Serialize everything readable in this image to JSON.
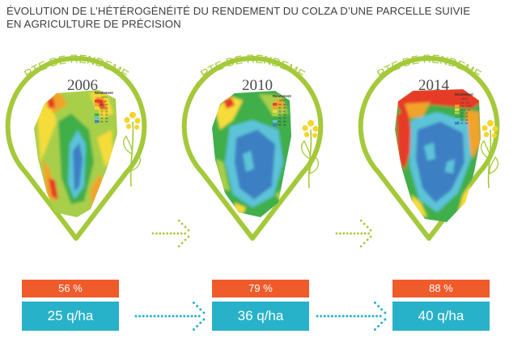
{
  "title": {
    "line1": "ÉVOLUTION DE L’HÉTÉROGÉNÉITÉ DU RENDEMENT DU COLZA D’UNE PARCELLE SUIVIE",
    "line2": "EN AGRICULTURE DE PRÉCISION"
  },
  "maps": [
    {
      "heading": "CARTE DE RENDEMENT",
      "year": "2006",
      "legend_title": "Rendement",
      "legend_unit": "(q/ha)",
      "legend": [
        "0 - 15",
        "15 - 20",
        "20 - 25",
        "25 - 30",
        "30 - 35",
        "35 - 40",
        "40 - 45"
      ],
      "heterogeneity": "56 %",
      "yield": "25 q/ha"
    },
    {
      "heading": "CARTE DE RENDEMENT",
      "year": "2010",
      "legend_title": "Rendement",
      "legend_unit": "(q/ha)",
      "legend": [
        "25 - 30",
        "30 - 35",
        "35 - 40",
        "40 - 45",
        "45 - 50",
        "50 - 55",
        "55 - 60"
      ],
      "heterogeneity": "79 %",
      "yield": "36 q/ha"
    },
    {
      "heading": "CARTE DE RENDEMENT",
      "year": "2014",
      "legend_title": "Rendement",
      "legend_unit": "(q/ha)",
      "legend": [
        "3.5 - 7.5",
        "7.5 - 13.5",
        "13.5 - 19",
        "19 - 25",
        "25 - 32",
        "32 - 40",
        "40 - 50"
      ],
      "heterogeneity": "88 %",
      "yield": "40 q/ha"
    }
  ],
  "colors": {
    "frame": "#a4c93a",
    "arrow": "#a4c93a",
    "arrow_blue": "#27b2c9",
    "pct_box": "#ef5b2b",
    "yield_box": "#27b2c9",
    "zones": [
      "#e63b26",
      "#f2a32b",
      "#f6dc3b",
      "#a8cf48",
      "#3fae49",
      "#5cc3d8",
      "#3d7fc3"
    ]
  }
}
